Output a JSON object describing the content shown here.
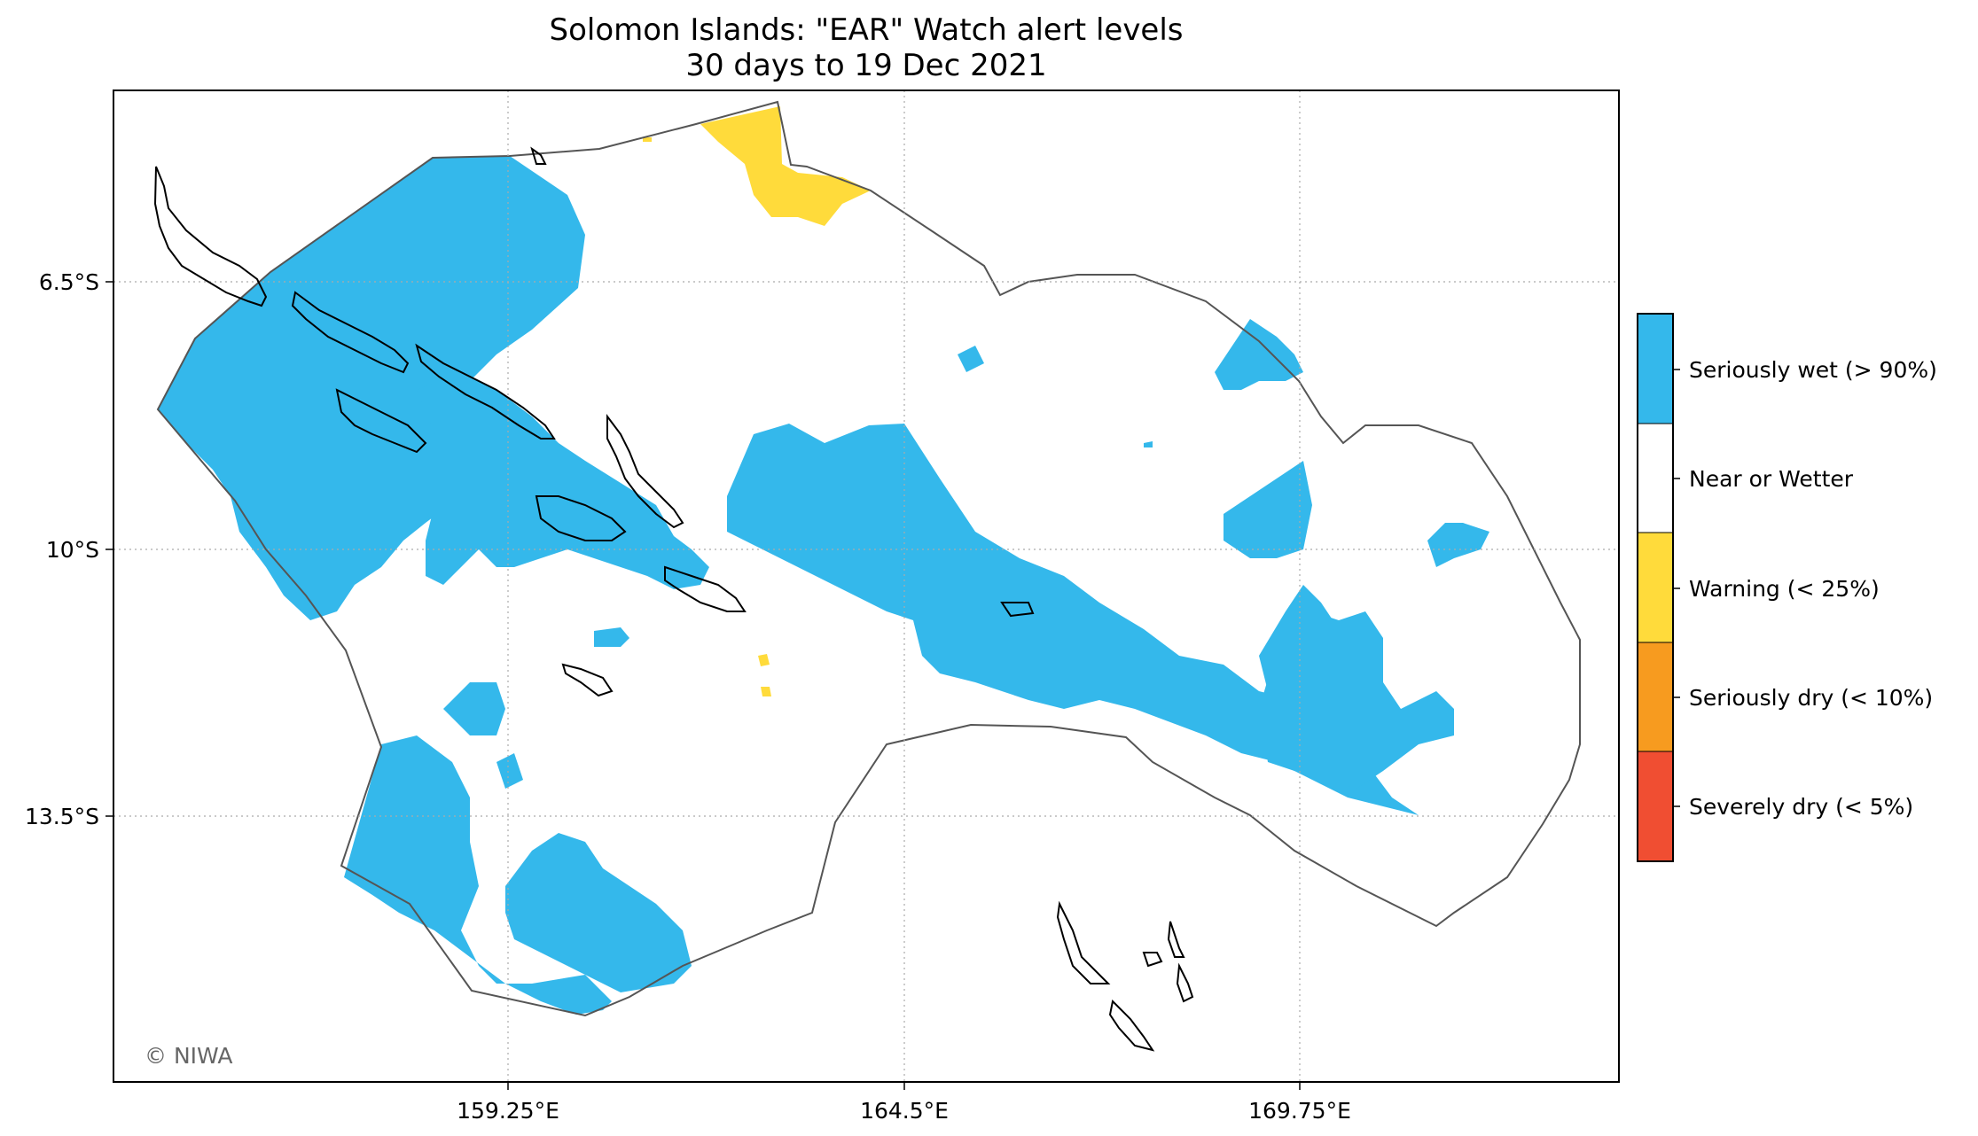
{
  "title": {
    "line1": "Solomon Islands: \"EAR\" Watch alert levels",
    "line2": "30 days to 19 Dec 2021"
  },
  "axes": {
    "x_ticks": [
      "159.25°E",
      "164.5°E",
      "169.75°E"
    ],
    "y_ticks": [
      "6.5°S",
      "10°S",
      "13.5°S"
    ],
    "grid": "dotted"
  },
  "legend": {
    "placement": "right",
    "items": [
      {
        "label": "Seriously wet (> 90%)",
        "color": "#34B8EB"
      },
      {
        "label": "Near or Wetter",
        "color": "#FFFFFF"
      },
      {
        "label": "Warning (< 25%)",
        "color": "#FFDB3B"
      },
      {
        "label": "Seriously dry (< 10%)",
        "color": "#F79B1F"
      },
      {
        "label": "Severely dry (< 5%)",
        "color": "#F04E32"
      }
    ]
  },
  "credit": "© NIWA",
  "colors": {
    "wet": "#34B8EB",
    "warning": "#FFDB3B",
    "boundary": "#555555",
    "coast": "#000000",
    "grid": "#AAAAAA"
  }
}
